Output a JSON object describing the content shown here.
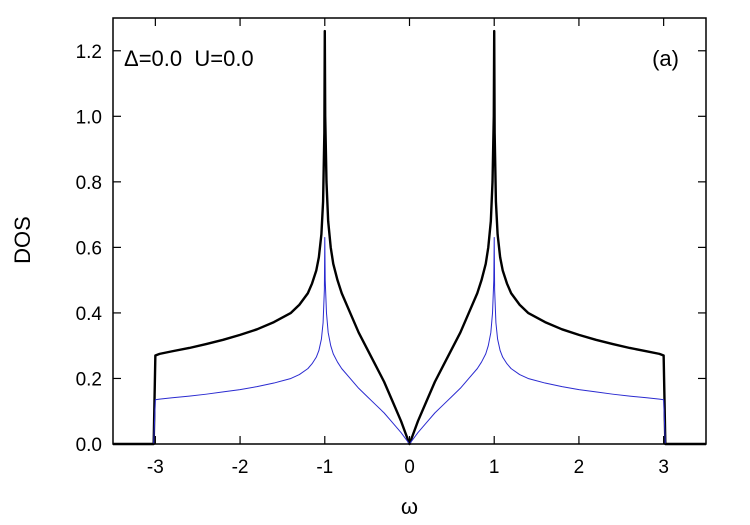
{
  "chart_data": {
    "type": "line",
    "title": "",
    "xlabel": "ω",
    "ylabel": "DOS",
    "xlim": [
      -3.5,
      3.5
    ],
    "ylim": [
      0,
      1.3
    ],
    "grid": false,
    "legend": "none",
    "annotations": {
      "params": "Δ=0.0  U=0.0",
      "panel": "(a)"
    },
    "xticks": [
      -3,
      -2,
      -1,
      0,
      1,
      2,
      3
    ],
    "xtick_labels": [
      "-3",
      "-2",
      "-1",
      "0",
      "1",
      "2",
      "3"
    ],
    "yticks": [
      0.0,
      0.2,
      0.4,
      0.6,
      0.8,
      1.0,
      1.2
    ],
    "ytick_labels": [
      "0.0",
      "0.2",
      "0.4",
      "0.6",
      "0.8",
      "1.0",
      "1.2"
    ],
    "series": [
      {
        "color": "#000000",
        "x": [
          -3.5,
          -3.02,
          -3.0,
          -2.95,
          -2.8,
          -2.6,
          -2.4,
          -2.2,
          -2.0,
          -1.8,
          -1.6,
          -1.4,
          -1.3,
          -1.2,
          -1.15,
          -1.1,
          -1.07,
          -1.04,
          -1.02,
          -1.005,
          -1.0,
          -0.995,
          -0.98,
          -0.96,
          -0.93,
          -0.9,
          -0.85,
          -0.8,
          -0.7,
          -0.6,
          -0.5,
          -0.4,
          -0.3,
          -0.2,
          -0.1,
          0.0,
          0.1,
          0.2,
          0.3,
          0.4,
          0.5,
          0.6,
          0.7,
          0.8,
          0.85,
          0.9,
          0.93,
          0.96,
          0.98,
          0.995,
          1.0,
          1.005,
          1.02,
          1.04,
          1.07,
          1.1,
          1.15,
          1.2,
          1.3,
          1.4,
          1.6,
          1.8,
          2.0,
          2.2,
          2.4,
          2.6,
          2.8,
          2.95,
          3.0,
          3.02,
          3.5
        ],
        "y": [
          0.0,
          0.0,
          0.27,
          0.275,
          0.283,
          0.293,
          0.305,
          0.318,
          0.333,
          0.35,
          0.372,
          0.4,
          0.425,
          0.46,
          0.49,
          0.53,
          0.57,
          0.64,
          0.74,
          0.95,
          1.26,
          1.0,
          0.8,
          0.68,
          0.6,
          0.55,
          0.5,
          0.46,
          0.4,
          0.34,
          0.29,
          0.24,
          0.19,
          0.13,
          0.07,
          0.0,
          0.07,
          0.13,
          0.19,
          0.24,
          0.29,
          0.34,
          0.4,
          0.46,
          0.5,
          0.55,
          0.6,
          0.68,
          0.8,
          1.0,
          1.26,
          0.95,
          0.74,
          0.64,
          0.57,
          0.53,
          0.49,
          0.46,
          0.425,
          0.4,
          0.372,
          0.35,
          0.333,
          0.318,
          0.305,
          0.293,
          0.283,
          0.275,
          0.27,
          0.0,
          0.0
        ]
      },
      {
        "color": "#2a2ad0",
        "x": [
          -3.5,
          -3.02,
          -3.0,
          -2.95,
          -2.8,
          -2.6,
          -2.4,
          -2.2,
          -2.0,
          -1.8,
          -1.6,
          -1.4,
          -1.3,
          -1.2,
          -1.15,
          -1.1,
          -1.07,
          -1.04,
          -1.02,
          -1.005,
          -1.0,
          -0.995,
          -0.98,
          -0.96,
          -0.93,
          -0.9,
          -0.85,
          -0.8,
          -0.7,
          -0.6,
          -0.5,
          -0.4,
          -0.3,
          -0.2,
          -0.1,
          0.0,
          0.1,
          0.2,
          0.3,
          0.4,
          0.5,
          0.6,
          0.7,
          0.8,
          0.85,
          0.9,
          0.93,
          0.96,
          0.98,
          0.995,
          1.0,
          1.005,
          1.02,
          1.04,
          1.07,
          1.1,
          1.15,
          1.2,
          1.3,
          1.4,
          1.6,
          1.8,
          2.0,
          2.2,
          2.4,
          2.6,
          2.8,
          2.95,
          3.0,
          3.02,
          3.5
        ],
        "y": [
          0.0,
          0.0,
          0.135,
          0.137,
          0.141,
          0.146,
          0.152,
          0.159,
          0.166,
          0.175,
          0.186,
          0.2,
          0.212,
          0.23,
          0.245,
          0.265,
          0.285,
          0.32,
          0.37,
          0.47,
          0.63,
          0.5,
          0.4,
          0.34,
          0.3,
          0.275,
          0.25,
          0.23,
          0.2,
          0.17,
          0.145,
          0.12,
          0.095,
          0.065,
          0.035,
          0.0,
          0.035,
          0.065,
          0.095,
          0.12,
          0.145,
          0.17,
          0.2,
          0.23,
          0.25,
          0.275,
          0.3,
          0.34,
          0.4,
          0.5,
          0.63,
          0.47,
          0.37,
          0.32,
          0.285,
          0.265,
          0.245,
          0.23,
          0.212,
          0.2,
          0.186,
          0.175,
          0.166,
          0.159,
          0.152,
          0.146,
          0.141,
          0.137,
          0.135,
          0.0,
          0.0
        ]
      }
    ]
  }
}
